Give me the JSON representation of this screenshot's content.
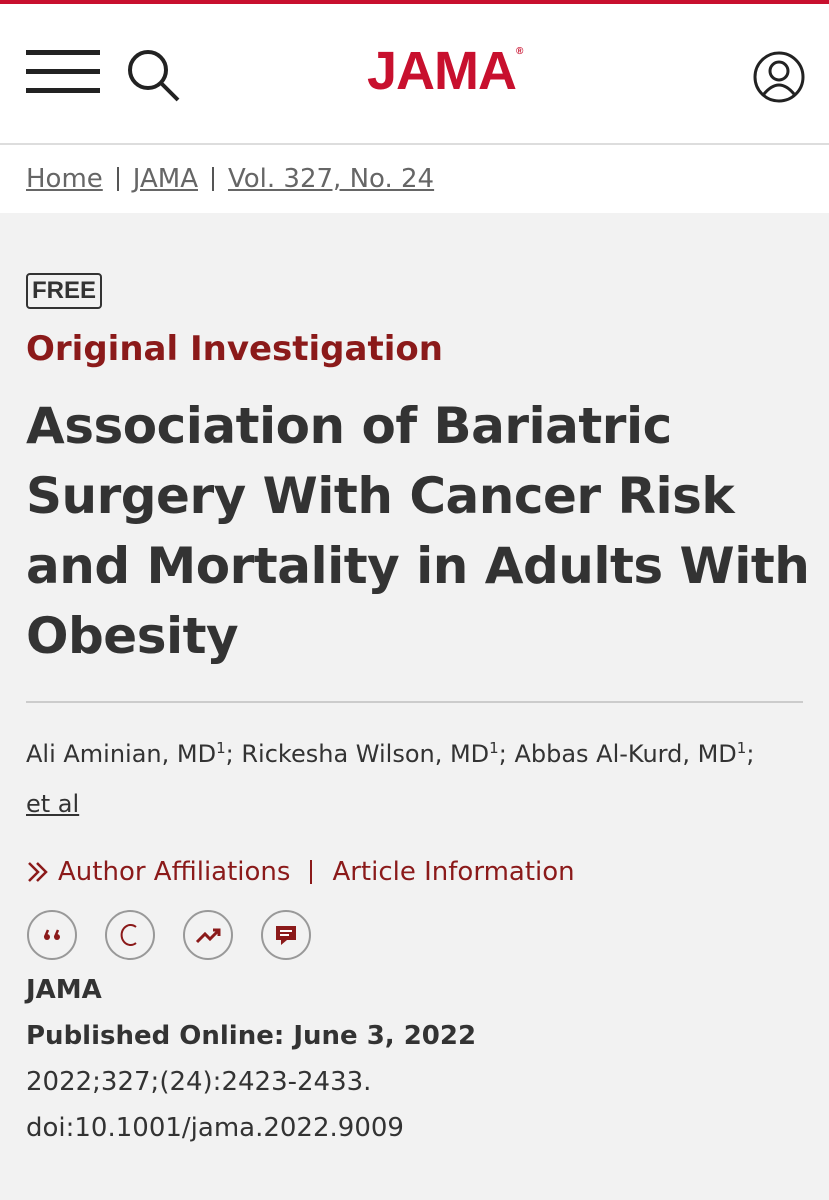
{
  "header": {
    "logo": "JAMA",
    "logo_mark": "®"
  },
  "breadcrumb": [
    "Home",
    "JAMA",
    "Vol. 327, No. 24"
  ],
  "article": {
    "badge": "FREE",
    "category": "Original Investigation",
    "title": "Association of Bariatric Surgery With Cancer Risk and Mortality in Adults With Obesity",
    "authors": [
      {
        "name": "Ali Aminian, MD",
        "affiliation": "1",
        "separator": ";"
      },
      {
        "name": "Rickesha Wilson, MD",
        "affiliation": "1",
        "separator": ";"
      },
      {
        "name": "Abbas Al-Kurd, MD",
        "affiliation": "1",
        "separator": ";"
      }
    ],
    "more_authors": "et al",
    "links": [
      "Author Affiliations",
      "Article Information"
    ],
    "journal": "JAMA",
    "published": "Published Online: June 3, 2022",
    "citation": "2022;327;(24):2423-2433.",
    "doi": "doi:10.1001/jama.2022.9009"
  }
}
